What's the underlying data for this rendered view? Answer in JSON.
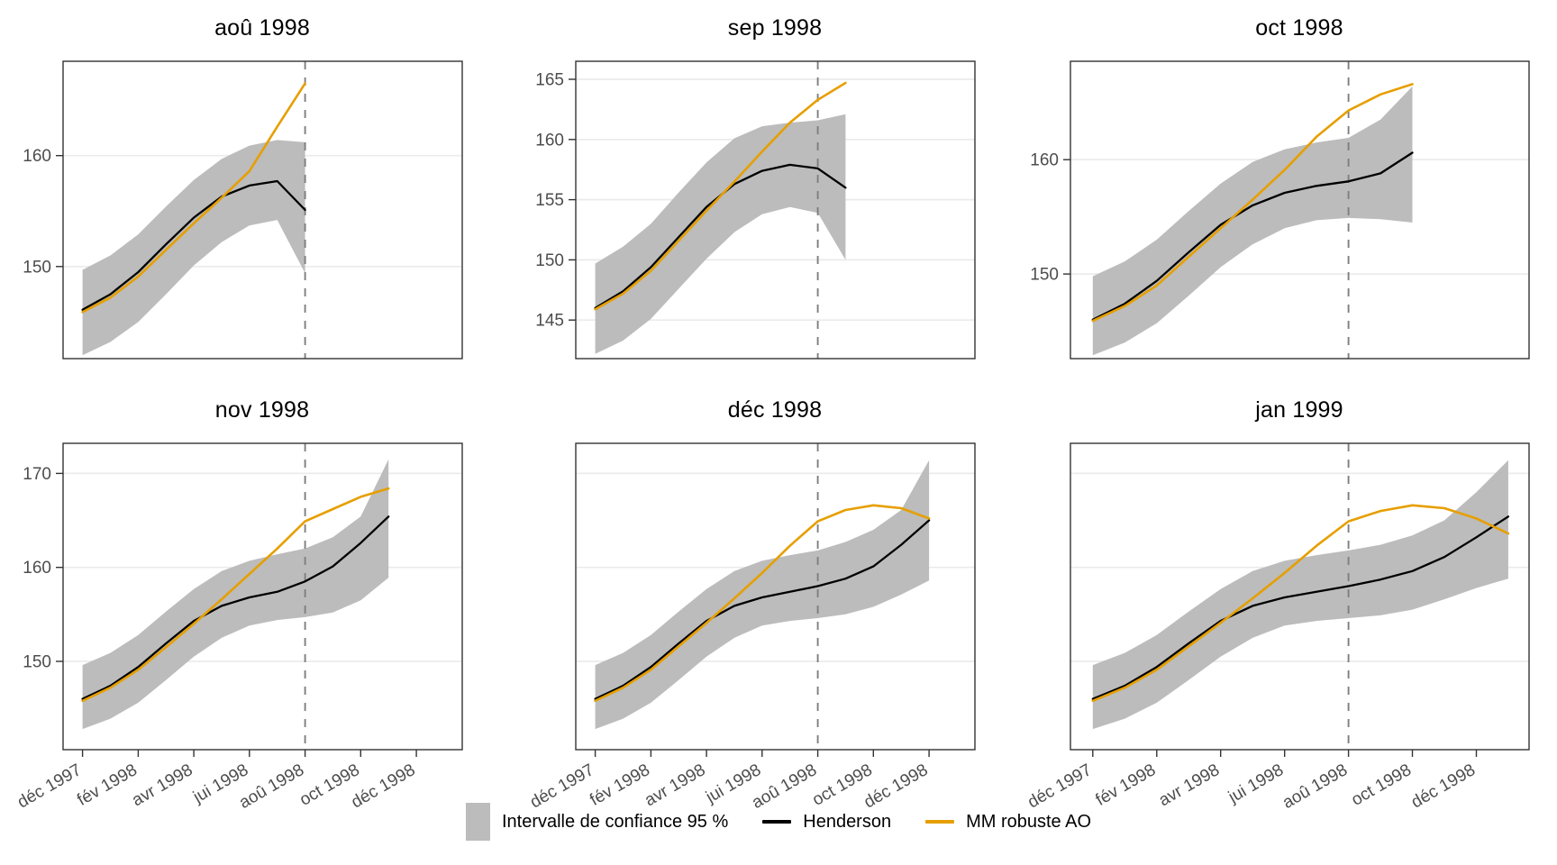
{
  "chart_data": {
    "type": "line",
    "description": "Six-panel faceted chart of real-time trend estimates with 95% confidence ribbon",
    "x_domain": [
      -0.7,
      13.65
    ],
    "x_tick_months": [
      0,
      2,
      4,
      6,
      8,
      10,
      12
    ],
    "x_tick_labels": [
      "déc 1997",
      "fév 1998",
      "avr 1998",
      "jui 1998",
      "aoû 1998",
      "oct 1998",
      "déc 1998"
    ],
    "event_line_month": 8,
    "legend": {
      "band_label": "Intervalle de confiance 95 %",
      "henderson_label": "Henderson",
      "mm_label": "MM robuste AO"
    },
    "colors": {
      "band": "#bcbcbc",
      "henderson": "#000000",
      "mm": "#e69f00",
      "dashed": "#7f7f7f",
      "grid": "#ebebeb",
      "border": "#333333",
      "tick_text": "#4d4d4d"
    },
    "panels": [
      {
        "title": "aoû 1998",
        "y_domain": [
          141.7,
          168.5
        ],
        "y_ticks": [
          150,
          160
        ],
        "show_y_labels": true,
        "show_x_labels": false,
        "series": {
          "henderson": [
            146.1,
            147.5,
            149.5,
            152.0,
            154.4,
            156.3,
            157.3,
            157.7,
            155.1
          ],
          "mm": [
            145.9,
            147.2,
            149.1,
            151.5,
            153.9,
            156.2,
            158.6,
            162.6,
            166.5
          ],
          "band_lower": [
            142.0,
            143.2,
            145.0,
            147.5,
            150.1,
            152.2,
            153.7,
            154.2,
            149.4
          ],
          "band_upper": [
            149.7,
            151.0,
            152.9,
            155.4,
            157.8,
            159.7,
            160.9,
            161.4,
            161.2
          ]
        }
      },
      {
        "title": "sep 1998",
        "y_domain": [
          141.8,
          166.5
        ],
        "y_ticks": [
          145,
          150,
          155,
          160,
          165
        ],
        "show_y_labels": true,
        "show_x_labels": false,
        "series": {
          "henderson": [
            146.0,
            147.4,
            149.4,
            151.9,
            154.4,
            156.3,
            157.4,
            157.9,
            157.6,
            156.0
          ],
          "mm": [
            145.9,
            147.2,
            149.1,
            151.6,
            154.1,
            156.5,
            159.0,
            161.4,
            163.3,
            164.7
          ],
          "band_lower": [
            142.2,
            143.3,
            145.1,
            147.6,
            150.1,
            152.3,
            153.8,
            154.4,
            153.9,
            150.0
          ],
          "band_upper": [
            149.7,
            151.1,
            153.0,
            155.6,
            158.1,
            160.1,
            161.1,
            161.4,
            161.6,
            162.1
          ]
        }
      },
      {
        "title": "oct 1998",
        "y_domain": [
          142.6,
          168.6
        ],
        "y_ticks": [
          150,
          160
        ],
        "show_y_labels": true,
        "show_x_labels": false,
        "series": {
          "henderson": [
            146.0,
            147.4,
            149.4,
            151.9,
            154.3,
            156.0,
            157.1,
            157.7,
            158.1,
            158.8,
            160.6
          ],
          "mm": [
            145.9,
            147.2,
            149.0,
            151.5,
            154.0,
            156.5,
            159.1,
            162.0,
            164.3,
            165.7,
            166.6
          ],
          "band_lower": [
            142.9,
            144.0,
            145.7,
            148.1,
            150.6,
            152.6,
            154.0,
            154.7,
            154.9,
            154.8,
            154.5
          ],
          "band_upper": [
            149.8,
            151.1,
            153.0,
            155.5,
            157.9,
            159.8,
            160.9,
            161.5,
            161.9,
            163.5,
            166.4
          ]
        }
      },
      {
        "title": "nov 1998",
        "y_domain": [
          140.6,
          173.2
        ],
        "y_ticks": [
          150,
          160,
          170
        ],
        "show_y_labels": true,
        "show_x_labels": true,
        "series": {
          "henderson": [
            146.0,
            147.4,
            149.4,
            151.9,
            154.3,
            155.9,
            156.8,
            157.4,
            158.5,
            160.1,
            162.6,
            165.4
          ],
          "mm": [
            145.8,
            147.2,
            149.1,
            151.5,
            154.0,
            156.6,
            159.3,
            162.0,
            164.9,
            166.2,
            167.5,
            168.4
          ],
          "band_lower": [
            142.8,
            143.9,
            145.6,
            148.0,
            150.5,
            152.5,
            153.8,
            154.4,
            154.7,
            155.2,
            156.5,
            158.9
          ],
          "band_upper": [
            149.6,
            150.9,
            152.8,
            155.3,
            157.7,
            159.6,
            160.7,
            161.4,
            162.0,
            163.2,
            165.4,
            171.5
          ]
        }
      },
      {
        "title": "déc 1998",
        "y_domain": [
          140.6,
          173.2
        ],
        "y_ticks": [
          150,
          160,
          170
        ],
        "show_y_labels": false,
        "show_x_labels": true,
        "series": {
          "henderson": [
            146.0,
            147.4,
            149.4,
            151.9,
            154.3,
            155.9,
            156.8,
            157.4,
            158.0,
            158.8,
            160.1,
            162.4,
            165.0
          ],
          "mm": [
            145.8,
            147.2,
            149.1,
            151.6,
            154.1,
            156.7,
            159.4,
            162.3,
            164.9,
            166.1,
            166.6,
            166.3,
            165.2
          ],
          "band_lower": [
            142.8,
            143.9,
            145.6,
            148.0,
            150.5,
            152.5,
            153.8,
            154.3,
            154.6,
            155.0,
            155.8,
            157.1,
            158.6
          ],
          "band_upper": [
            149.6,
            150.9,
            152.8,
            155.3,
            157.7,
            159.6,
            160.7,
            161.3,
            161.8,
            162.7,
            164.0,
            166.1,
            171.4
          ]
        }
      },
      {
        "title": "jan 1999",
        "y_domain": [
          140.6,
          173.2
        ],
        "y_ticks": [
          150,
          160,
          170
        ],
        "show_y_labels": false,
        "show_x_labels": true,
        "series": {
          "henderson": [
            146.0,
            147.4,
            149.4,
            151.9,
            154.3,
            155.9,
            156.8,
            157.4,
            158.0,
            158.7,
            159.6,
            161.1,
            163.2,
            165.4
          ],
          "mm": [
            145.8,
            147.2,
            149.1,
            151.6,
            154.1,
            156.7,
            159.4,
            162.3,
            164.9,
            166.0,
            166.6,
            166.3,
            165.2,
            163.6
          ],
          "band_lower": [
            142.8,
            143.9,
            145.6,
            148.0,
            150.5,
            152.5,
            153.8,
            154.3,
            154.6,
            154.9,
            155.5,
            156.6,
            157.8,
            158.8
          ],
          "band_upper": [
            149.6,
            150.9,
            152.8,
            155.3,
            157.7,
            159.6,
            160.7,
            161.3,
            161.8,
            162.4,
            163.4,
            165.0,
            168.0,
            171.4
          ]
        }
      }
    ]
  }
}
